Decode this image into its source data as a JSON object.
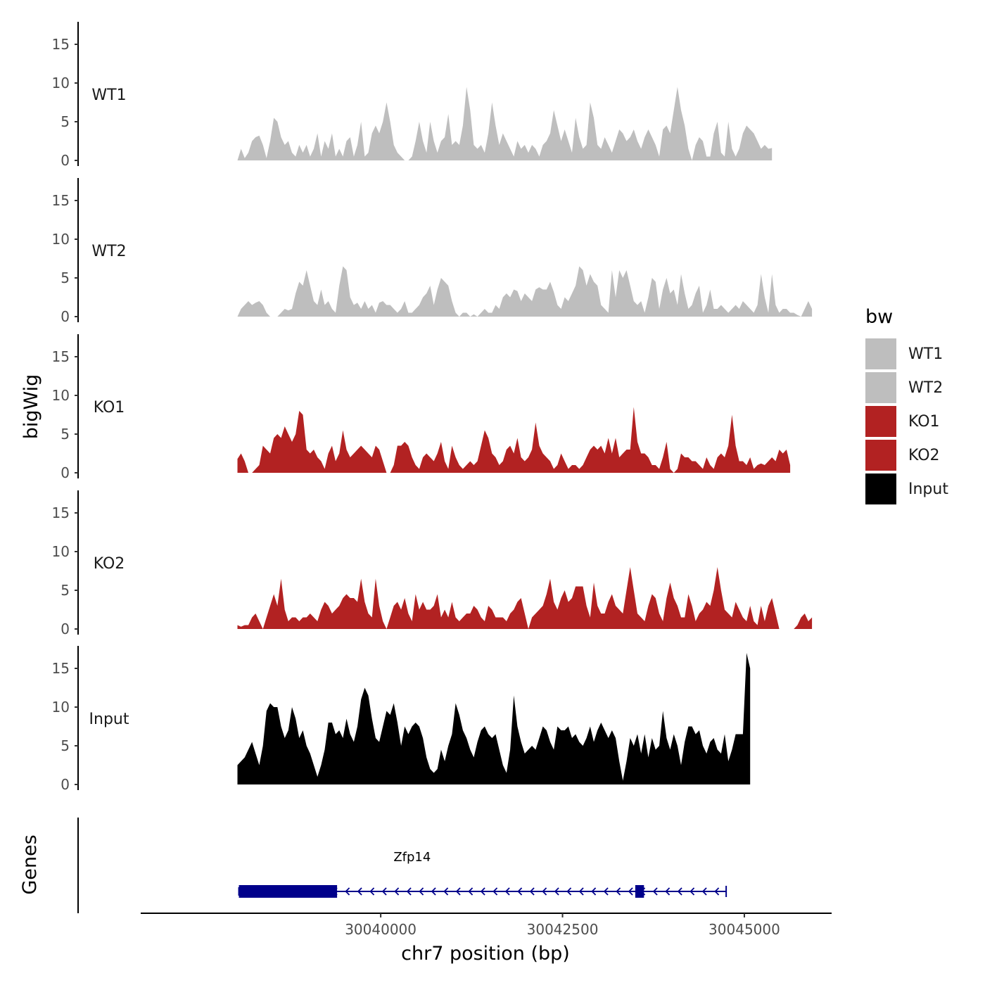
{
  "chart_data": {
    "type": "area",
    "title": "",
    "chromosome": "chr7",
    "xlabel": "chr7 position (bp)",
    "ylabel_tracks": "bigWig",
    "ylabel_genes": "Genes",
    "xlim": [
      30036700,
      30046200
    ],
    "x_ticks": [
      30040000,
      30042500,
      30045000
    ],
    "x_tick_labels": [
      "30040000",
      "30042500",
      "30045000"
    ],
    "ylim": [
      0,
      17.5
    ],
    "y_ticks": [
      0,
      5,
      10,
      15
    ],
    "y_tick_labels": [
      "0",
      "5",
      "10",
      "15"
    ],
    "x_start": 30038030,
    "x_step": 50,
    "legend": {
      "title": "bw",
      "position": "right",
      "entries": [
        {
          "label": "WT1",
          "color": "#bebebe"
        },
        {
          "label": "WT2",
          "color": "#bebebe"
        },
        {
          "label": "KO1",
          "color": "#b22222"
        },
        {
          "label": "KO2",
          "color": "#b22222"
        },
        {
          "label": "Input",
          "color": "#000000"
        }
      ]
    },
    "series": [
      {
        "name": "WT1",
        "color": "#bebebe",
        "values": [
          0,
          1.5,
          0.3,
          1,
          2.5,
          3,
          3.2,
          2,
          0.3,
          2.5,
          5.5,
          5,
          3,
          2,
          2.5,
          1,
          0.5,
          2,
          1,
          2,
          0.5,
          1.5,
          3.5,
          0.5,
          2.5,
          1.5,
          3.5,
          0.5,
          1.5,
          0.5,
          2.5,
          3,
          0.5,
          2,
          5,
          0.5,
          1,
          3.5,
          4.5,
          3.5,
          5,
          7.5,
          5,
          2,
          1,
          0.5,
          0,
          0,
          0.5,
          2.5,
          5,
          2.5,
          1,
          5,
          2.5,
          1,
          2.5,
          3,
          6,
          2,
          2.5,
          2,
          4.5,
          9.5,
          6.5,
          2,
          1.5,
          2,
          1,
          3.5,
          7.5,
          4.5,
          2,
          3.5,
          2.5,
          1.5,
          0.5,
          2.5,
          1.5,
          2,
          1,
          2,
          1.5,
          0.5,
          2,
          2.5,
          3.5,
          6.5,
          4.5,
          2.5,
          4,
          2.5,
          1,
          5.5,
          3,
          1.5,
          2,
          7.5,
          5.5,
          2,
          1.5,
          3,
          2,
          1,
          2.5,
          4,
          3.5,
          2.5,
          3,
          4,
          2.5,
          1.5,
          3,
          4,
          3,
          2,
          0.5,
          4,
          4.5,
          3.5,
          6.5,
          9.5,
          6.5,
          4.5,
          1.5,
          0,
          2,
          3,
          2.5,
          0.5,
          0.5,
          3.5,
          5,
          1,
          0.5,
          5,
          1.5,
          0.5,
          1.5,
          3.5,
          4.5,
          4,
          3.5,
          2.5,
          1.5,
          2,
          1.5,
          1.6
        ]
      },
      {
        "name": "WT2",
        "color": "#bebebe",
        "values": [
          0,
          1,
          1.5,
          2,
          1.5,
          1.8,
          2,
          1.5,
          0.5,
          0,
          0,
          0,
          0.5,
          1,
          0.8,
          1,
          3,
          4.5,
          4,
          6,
          4,
          2,
          1.5,
          3.5,
          1.5,
          2,
          1,
          0.5,
          4,
          6.5,
          6,
          2.5,
          1.5,
          1.8,
          1,
          2,
          1,
          1.5,
          0.5,
          1.8,
          2,
          1.5,
          1.5,
          1,
          0.5,
          1,
          2,
          0.5,
          0.5,
          1,
          1.5,
          2.5,
          3,
          4,
          1.5,
          3.5,
          5,
          4.5,
          4,
          2,
          0.5,
          0,
          0.5,
          0.5,
          0,
          0.3,
          0,
          0.5,
          1,
          0.5,
          0.5,
          1.5,
          1,
          2.5,
          3,
          2.5,
          3.5,
          3.3,
          2,
          3,
          2.5,
          2,
          3.5,
          3.8,
          3.5,
          3.5,
          4.5,
          3.2,
          1.5,
          1,
          2.5,
          2,
          3,
          4,
          6.5,
          6,
          4,
          5.5,
          4.5,
          4,
          1.5,
          1,
          0.5,
          6,
          2.5,
          6,
          5,
          6,
          4,
          2,
          1.5,
          2,
          0.5,
          2.5,
          5,
          4.5,
          1,
          3.5,
          5,
          3,
          3.5,
          1.5,
          5.5,
          3,
          1,
          1.5,
          3,
          4,
          0.5,
          1.5,
          3.5,
          1,
          1,
          1.5,
          1,
          0.5,
          1,
          1.5,
          1,
          2,
          1.5,
          1,
          0.5,
          1.5,
          5.5,
          2.5,
          0.5,
          5.5,
          1.5,
          0.5,
          1,
          1,
          0.5,
          0.5,
          0.2,
          0,
          1,
          2,
          1
        ]
      },
      {
        "name": "KO1",
        "color": "#b22222",
        "values": [
          1.8,
          2.5,
          1.5,
          0,
          0,
          0.5,
          1,
          3.5,
          3,
          2.5,
          4.5,
          5,
          4.5,
          6,
          5,
          4,
          5,
          8,
          7.5,
          3,
          2.5,
          3,
          2,
          1.5,
          0.5,
          2.5,
          3.5,
          1.5,
          2.5,
          5.5,
          3,
          2,
          2.5,
          3,
          3.5,
          3,
          2.5,
          2,
          3.5,
          3,
          1.5,
          0,
          0,
          1,
          3.5,
          3.5,
          4,
          3.5,
          2,
          1,
          0.5,
          2,
          2.5,
          2,
          1.5,
          2.5,
          4,
          1.5,
          0.5,
          3.5,
          2,
          1,
          0.5,
          1,
          1.5,
          1,
          1.5,
          3.5,
          5.5,
          4.5,
          2.5,
          2,
          1,
          1.5,
          3,
          3.5,
          2.5,
          4.5,
          2,
          1.5,
          2,
          3,
          6.5,
          3.5,
          2.5,
          2,
          1.5,
          0.5,
          1,
          2.5,
          1.5,
          0.5,
          1,
          1,
          0.5,
          1,
          2,
          3,
          3.5,
          3,
          3.5,
          2.5,
          4.5,
          2.5,
          4.5,
          2,
          2.5,
          3,
          3,
          8.5,
          4,
          2.5,
          2.5,
          2,
          1,
          1,
          0.5,
          2,
          4,
          0.5,
          0,
          0.5,
          2.5,
          2,
          2,
          1.5,
          1.5,
          1,
          0.5,
          2,
          1,
          0.5,
          2,
          2.5,
          2,
          3.5,
          7.5,
          3.5,
          1.5,
          1.5,
          1,
          2,
          0.5,
          1,
          1.2,
          1,
          1.5,
          2,
          1.5,
          3,
          2.5,
          3,
          1
        ]
      },
      {
        "name": "KO2",
        "color": "#b22222",
        "values": [
          0.5,
          0.3,
          0.5,
          0.5,
          1.5,
          2,
          1,
          0,
          1.5,
          3,
          4.5,
          3,
          6.5,
          2.5,
          1,
          1.5,
          1.5,
          1,
          1.5,
          1.5,
          2,
          1.5,
          1,
          2.5,
          3.5,
          3,
          2,
          2.5,
          3,
          4,
          4.5,
          4,
          4,
          3.5,
          6.5,
          3.5,
          2,
          1.5,
          6.5,
          3,
          1,
          0,
          1.5,
          3,
          3.5,
          2.5,
          4,
          2,
          1,
          4.5,
          2.5,
          3.5,
          2.5,
          2.5,
          3,
          4.5,
          1.5,
          2.5,
          1.5,
          3.5,
          1.5,
          1,
          1.5,
          2,
          2,
          3,
          2.5,
          1.5,
          1,
          3,
          2.5,
          1.5,
          1.5,
          1.5,
          1,
          2,
          2.5,
          3.5,
          4,
          2,
          0,
          1.5,
          2,
          2.5,
          3,
          4.5,
          6.5,
          3.5,
          2.5,
          4,
          5,
          3.5,
          4,
          5.5,
          5.5,
          5.5,
          3,
          1.5,
          6,
          3,
          2,
          2,
          3.5,
          4.5,
          3,
          2.5,
          2,
          5,
          8,
          5,
          2,
          1.5,
          1,
          3,
          4.5,
          4,
          2,
          1,
          4,
          6,
          4,
          3,
          1.5,
          1.5,
          4.5,
          3,
          1,
          2,
          2.5,
          3.5,
          3,
          5,
          8,
          5,
          2.5,
          2,
          1.5,
          3.5,
          2.5,
          1.5,
          1,
          3,
          1,
          0.5,
          3,
          1,
          3,
          4,
          2,
          0,
          0,
          0,
          0,
          0,
          0.5,
          1.5,
          2,
          1,
          1.5
        ]
      },
      {
        "name": "Input",
        "color": "#000000",
        "values": [
          2.5,
          3,
          3.5,
          4.5,
          5.5,
          4,
          2.5,
          5,
          9.5,
          10.5,
          10,
          10,
          7.5,
          6,
          7,
          10,
          8.5,
          6,
          7,
          5,
          4,
          2.5,
          1,
          2.5,
          4.5,
          8,
          8,
          6.5,
          7,
          6,
          8.5,
          6.5,
          5.5,
          7.5,
          11,
          12.5,
          11.5,
          8.5,
          6,
          5.5,
          7.5,
          9.5,
          9,
          10.5,
          8,
          5,
          7.5,
          6.5,
          7.5,
          8,
          7.5,
          6,
          3.5,
          2,
          1.5,
          2,
          4.5,
          3,
          5,
          6.5,
          10.5,
          9,
          7,
          6,
          4.5,
          3.5,
          5.5,
          7,
          7.5,
          6.5,
          6,
          6.5,
          4.5,
          2.5,
          1.5,
          4.5,
          11.5,
          7.5,
          5.5,
          4,
          4.5,
          5,
          4.5,
          6,
          7.5,
          7,
          5.5,
          4.5,
          7.5,
          7,
          7,
          7.5,
          6,
          6.5,
          5.5,
          5,
          6,
          7.5,
          5.5,
          7,
          8,
          7,
          6,
          7,
          6,
          3,
          0.5,
          3,
          6,
          5,
          6.5,
          4,
          6.5,
          3.5,
          6,
          4.5,
          5,
          9.5,
          6,
          4.5,
          6.5,
          5,
          2.5,
          5.5,
          7.5,
          7.5,
          6.5,
          7,
          5,
          4,
          5.5,
          6,
          4.5,
          4,
          6.5,
          3,
          4.5,
          6.5,
          6.5,
          6.5,
          17,
          15
        ]
      }
    ],
    "genes": [
      {
        "name": "Zfp14",
        "strand": "-",
        "color": "#00008b",
        "tx_start": 30038050,
        "tx_end": 30044750,
        "exons": [
          [
            30038050,
            30039400
          ],
          [
            30043500,
            30043620
          ]
        ]
      }
    ]
  }
}
